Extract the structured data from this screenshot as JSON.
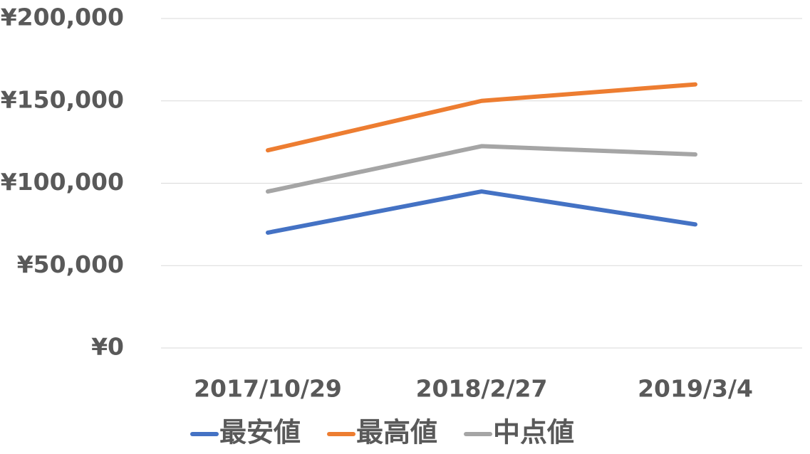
{
  "chart_data": {
    "type": "line",
    "categories": [
      "2017/10/29",
      "2018/2/27",
      "2019/3/4"
    ],
    "series": [
      {
        "name": "最安値",
        "color": "#4472c4",
        "values": [
          70000,
          95000,
          75000
        ]
      },
      {
        "name": "最高値",
        "color": "#ed7d31",
        "values": [
          120000,
          150000,
          160000
        ]
      },
      {
        "name": "中点値",
        "color": "#a5a5a5",
        "values": [
          95000,
          122500,
          117500
        ]
      }
    ],
    "ylim": [
      0,
      200000
    ],
    "yticks": [
      {
        "value": 0,
        "label": "¥0"
      },
      {
        "value": 50000,
        "label": "¥50,000"
      },
      {
        "value": 100000,
        "label": "¥100,000"
      },
      {
        "value": 150000,
        "label": "¥150,000"
      },
      {
        "value": 200000,
        "label": "¥200,000"
      }
    ],
    "grid": true,
    "legend": "bottom"
  }
}
